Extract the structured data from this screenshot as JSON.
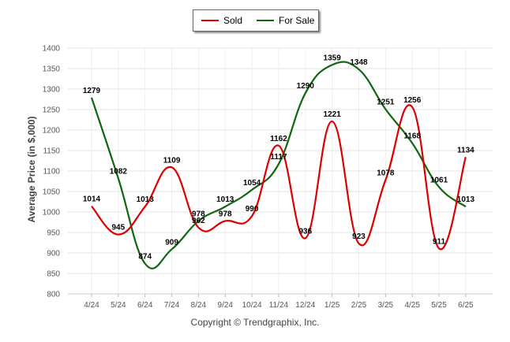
{
  "chart_data": {
    "type": "line",
    "categories": [
      "4/24",
      "5/24",
      "6/24",
      "7/24",
      "8/24",
      "9/24",
      "10/24",
      "11/24",
      "12/24",
      "1/25",
      "2/25",
      "3/25",
      "4/25",
      "5/25",
      "6/25"
    ],
    "series": [
      {
        "name": "Sold",
        "color": "#dd0000",
        "values": [
          1014,
          945,
          1013,
          1109,
          962,
          978,
          990,
          1162,
          936,
          1221,
          923,
          1078,
          1256,
          911,
          1134
        ]
      },
      {
        "name": "For Sale",
        "color": "#116611",
        "values": [
          1279,
          1082,
          874,
          909,
          978,
          1013,
          1054,
          1117,
          1290,
          1359,
          1348,
          1251,
          1168,
          1061,
          1013
        ]
      }
    ],
    "ylabel": "Average Price (in $,000)",
    "xlabel": "",
    "ylim": [
      800,
      1400
    ],
    "yticks": [
      800,
      850,
      900,
      950,
      1000,
      1050,
      1100,
      1150,
      1200,
      1250,
      1300,
      1350,
      1400
    ],
    "grid": true,
    "legend_position": "top-center"
  },
  "footer": {
    "copyright": "Copyright © Trendgraphix, Inc."
  }
}
